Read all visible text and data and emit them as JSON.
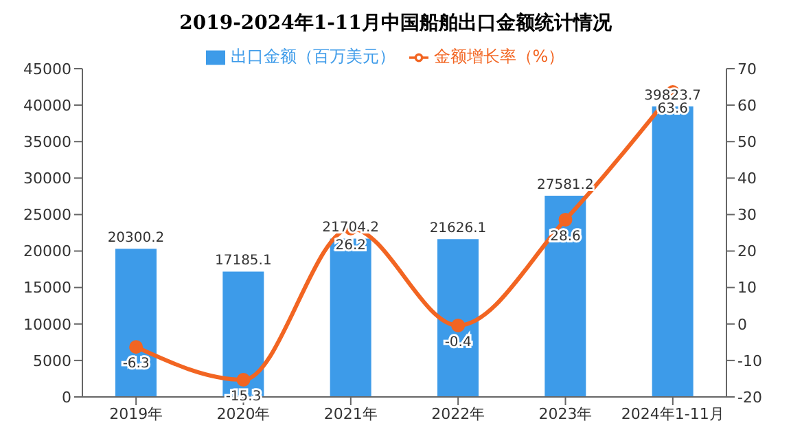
{
  "chart_data": {
    "type": "bar",
    "title": "2019-2024年1-11月中国船舶出口金额统计情况",
    "categories": [
      "2019年",
      "2020年",
      "2021年",
      "2022年",
      "2023年",
      "2024年1-11月"
    ],
    "series": [
      {
        "name": "出口金额（百万美元）",
        "color": "#3d9be9",
        "values": [
          20300.2,
          17185.1,
          21704.2,
          21626.1,
          27581.2,
          39823.7
        ]
      },
      {
        "name": "金额增长率（%）",
        "type": "line",
        "axis": "y2",
        "color": "#f26522",
        "values": [
          -6.3,
          -15.3,
          26.2,
          -0.4,
          28.6,
          63.6
        ]
      }
    ],
    "ylim": [
      0,
      45000
    ],
    "yticks": [
      0,
      5000,
      10000,
      15000,
      20000,
      25000,
      30000,
      35000,
      40000,
      45000
    ],
    "y2lim": [
      -20,
      70
    ],
    "y2ticks": [
      -20,
      -10,
      0,
      10,
      20,
      30,
      40,
      50,
      60,
      70
    ],
    "data_labels": true,
    "legend": "top",
    "marker": "circle",
    "line_style": "solid"
  }
}
